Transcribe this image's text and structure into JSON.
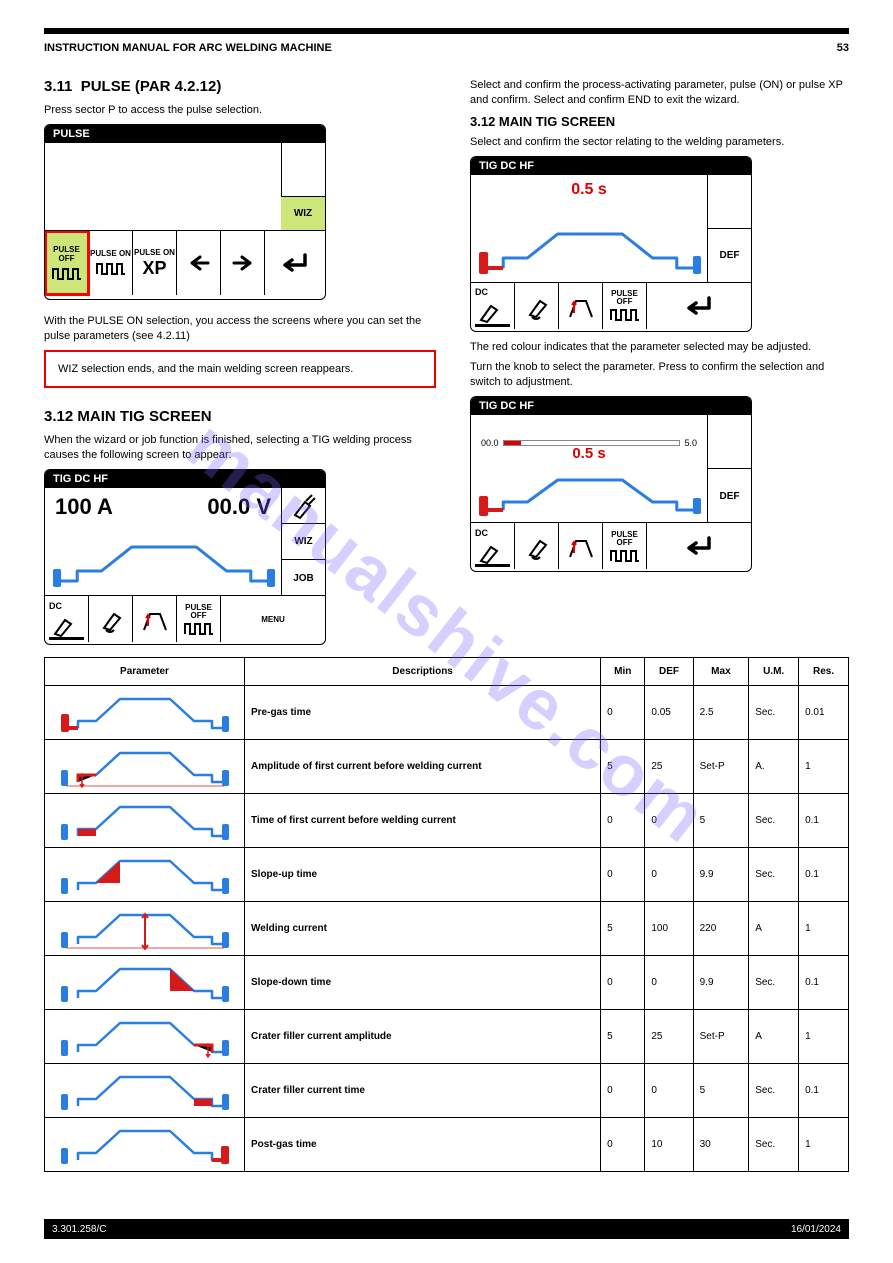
{
  "header": {
    "title": "INSTRUCTION MANUAL FOR ARC WELDING MACHINE",
    "page": "53"
  },
  "watermark": "manualshive.com",
  "section": {
    "num": "3.11",
    "title": "PULSE (PAR 4.2.12)",
    "intro": "Press sector P to access the pulse selection."
  },
  "pulse_panel": {
    "title": "PULSE",
    "wiz": "WIZ",
    "tabs": [
      "PULSE OFF",
      "PULSE ON",
      "PULSE ON",
      "XP"
    ],
    "xp_big": "XP"
  },
  "right_intro": "Select and confirm the process-activating parameter, pulse (ON) or pulse XP and confirm. Select and confirm END to exit the wizard.",
  "right_title": "3.12 MAIN TIG SCREEN",
  "right_body1": "Select and confirm the sector relating to the welding parameters.",
  "right_body2": "The red colour indicates that the parameter selected may be adjusted.",
  "right_body3": "Turn the knob to select the parameter. Press to confirm the selection and switch to adjustment.",
  "pulse_on_text": "With the PULSE ON selection, you access the screens where you can set the pulse parameters (see 4.2.11)",
  "note_box": "WIZ selection ends, and the main welding screen reappears.",
  "main_tig_title": "3.12 MAIN TIG SCREEN",
  "main_tig_text": "When the wizard or job function is finished, selecting a TIG welding process causes the following screen to appear:",
  "tig_main": {
    "title": "TIG DC HF",
    "amp": "100 A",
    "volt": "00.0 V",
    "r_labels": [
      "",
      "WIZ",
      "JOB",
      "MENU"
    ],
    "b_labels": [
      "DC",
      "",
      "",
      "",
      "PULSE OFF"
    ]
  },
  "tig_r1": {
    "title": "TIG DC HF",
    "value": "0.5 s",
    "r_labels": [
      "",
      "DEF",
      ""
    ],
    "b_labels": [
      "DC",
      "",
      "",
      "",
      "PULSE OFF"
    ]
  },
  "tig_r2": {
    "title": "TIG DC HF",
    "value": "0.5 s",
    "bar_min": "00.0",
    "bar_max": "5.0",
    "r_labels": [
      "",
      "DEF",
      ""
    ],
    "b_labels": [
      "DC",
      "",
      "",
      "",
      "PULSE OFF"
    ]
  },
  "curve": {
    "blue": "#2a7de1",
    "red": "#d61a1a"
  },
  "table": {
    "headers": [
      "Parameter",
      "Descriptions",
      "Min",
      "DEF",
      "Max",
      "U.M.",
      "Res."
    ],
    "rows": [
      {
        "desc": "Pre-gas time",
        "min": "0",
        "def": "0.05",
        "max": "2.5",
        "um": "Sec.",
        "res": "0.01",
        "hl": "pregas"
      },
      {
        "desc": "Amplitude of first current before welding current",
        "min": "5",
        "def": "25",
        "max": "Set-P",
        "um": "A.",
        "res": "1",
        "hl": "startamp"
      },
      {
        "desc": "Time of first current before welding current",
        "min": "0",
        "def": "0",
        "max": "5",
        "um": "Sec.",
        "res": "0.1",
        "hl": "starttime"
      },
      {
        "desc": "Slope-up time",
        "min": "0",
        "def": "0",
        "max": "9.9",
        "um": "Sec.",
        "res": "0.1",
        "hl": "slopeup"
      },
      {
        "desc": "Welding current",
        "min": "5",
        "def": "100",
        "max": "220",
        "um": "A",
        "res": "1",
        "hl": "weld"
      },
      {
        "desc": "Slope-down time",
        "min": "0",
        "def": "0",
        "max": "9.9",
        "um": "Sec.",
        "res": "0.1",
        "hl": "slopedown"
      },
      {
        "desc": "Crater filler current amplitude",
        "min": "5",
        "def": "25",
        "max": "Set-P",
        "um": "A",
        "res": "1",
        "hl": "crateramp"
      },
      {
        "desc": "Crater filler current time",
        "min": "0",
        "def": "0",
        "max": "5",
        "um": "Sec.",
        "res": "0.1",
        "hl": "cratertime"
      },
      {
        "desc": "Post-gas time",
        "min": "0",
        "def": "10",
        "max": "30",
        "um": "Sec.",
        "res": "1",
        "hl": "postgas"
      }
    ]
  },
  "footer": {
    "left": "3.301.258/C",
    "right": "16/01/2024"
  }
}
